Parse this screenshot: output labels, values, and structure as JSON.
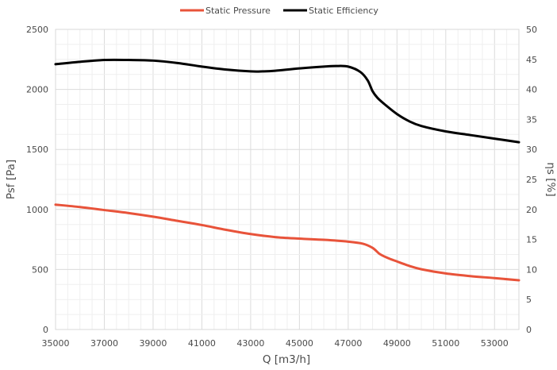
{
  "chart_data": {
    "type": "line",
    "title": "",
    "xlabel": "Q [m3/h]",
    "ylabel": "Psf [Pa]",
    "y2label": "ηs [%]",
    "xlim": [
      35000,
      54000
    ],
    "ylim": [
      0,
      2500
    ],
    "y2lim": [
      0,
      50
    ],
    "xticks": [
      "35000",
      "37000",
      "39000",
      "41000",
      "43000",
      "45000",
      "47000",
      "49000",
      "51000",
      "53000"
    ],
    "yticks": [
      "0",
      "500",
      "1000",
      "1500",
      "2000",
      "2500"
    ],
    "y2ticks": [
      "0",
      "5",
      "10",
      "15",
      "20",
      "25",
      "30",
      "35",
      "40",
      "45",
      "50"
    ],
    "grid": true,
    "legend_position": "top-center",
    "series": [
      {
        "name": "Static Pressure",
        "axis": "left",
        "color": "#e8533a",
        "x": [
          35000,
          36000,
          37000,
          38000,
          39000,
          40000,
          41000,
          42000,
          43000,
          44000,
          45000,
          46000,
          47000,
          47600,
          48000,
          48300,
          48600,
          49000,
          49500,
          50000,
          51000,
          52000,
          53000,
          54000
        ],
        "y": [
          1040,
          1020,
          995,
          970,
          940,
          905,
          870,
          830,
          795,
          770,
          757,
          747,
          732,
          715,
          680,
          628,
          598,
          567,
          530,
          502,
          467,
          445,
          428,
          410
        ]
      },
      {
        "name": "Static Efficiency",
        "axis": "right",
        "color": "#000000",
        "x": [
          35000,
          36000,
          37000,
          38000,
          39000,
          40000,
          41000,
          42000,
          43000,
          43500,
          44000,
          45000,
          46000,
          46500,
          47000,
          47500,
          47800,
          48000,
          48200,
          48500,
          49000,
          49500,
          50000,
          51000,
          52000,
          53000,
          54000
        ],
        "y": [
          44.2,
          44.6,
          44.9,
          44.9,
          44.8,
          44.4,
          43.8,
          43.3,
          43.0,
          43.0,
          43.1,
          43.5,
          43.8,
          43.9,
          43.8,
          42.9,
          41.5,
          39.7,
          38.6,
          37.5,
          35.9,
          34.7,
          33.9,
          33.0,
          32.4,
          31.8,
          31.2
        ]
      }
    ]
  }
}
